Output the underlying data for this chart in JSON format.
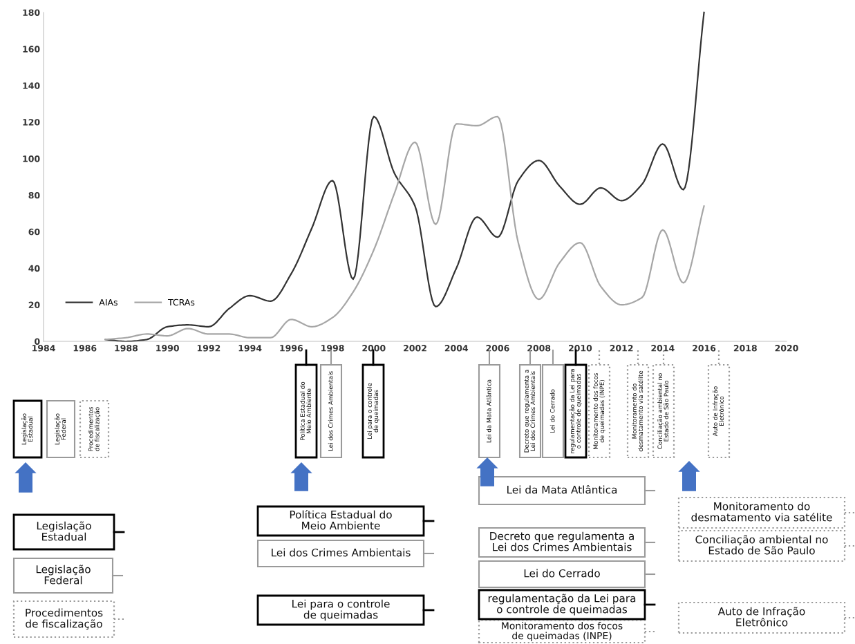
{
  "chart_data": {
    "type": "line",
    "x": [
      1987,
      1988,
      1989,
      1990,
      1991,
      1992,
      1993,
      1994,
      1995,
      1996,
      1997,
      1998,
      1999,
      2000,
      2001,
      2002,
      2003,
      2004,
      2005,
      2006,
      2007,
      2008,
      2009,
      2010,
      2011,
      2012,
      2013,
      2014,
      2015,
      2016
    ],
    "series": [
      {
        "name": "AIAs",
        "color": "#333333",
        "values": [
          1,
          0,
          1,
          8,
          9,
          8,
          18,
          25,
          22,
          37,
          62,
          88,
          34,
          123,
          92,
          74,
          19,
          40,
          68,
          57,
          88,
          99,
          85,
          75,
          84,
          77,
          86,
          108,
          83,
          180
        ]
      },
      {
        "name": "TCRAs",
        "color": "#a6a6a6",
        "values": [
          1,
          2,
          4,
          3,
          7,
          4,
          4,
          2,
          2,
          12,
          8,
          13,
          27,
          50,
          81,
          109,
          64,
          119,
          118,
          123,
          54,
          23,
          43,
          54,
          30,
          20,
          24,
          61,
          32,
          74
        ]
      }
    ],
    "xlim": [
      1984,
      2020
    ],
    "xticks": [
      1984,
      1986,
      1988,
      1990,
      1992,
      1994,
      1996,
      1998,
      2000,
      2002,
      2004,
      2006,
      2008,
      2010,
      2012,
      2014,
      2016,
      2018,
      2020
    ],
    "ylim": [
      0,
      180
    ],
    "yticks": [
      0,
      20,
      40,
      60,
      80,
      100,
      120,
      140,
      160,
      180
    ],
    "grid": false,
    "legend": "bottom left",
    "marker": "none",
    "line_style": "solid",
    "annotations": [
      "Política Estadual do\nMeio Ambiente",
      "Lei dos Crimes Ambientais",
      "Lei para o controle\nde queimadas",
      "Lei da Mata Atlântica",
      "Decreto que regulamenta a\nLei dos Crimes Ambientais",
      "Lei do Cerrado",
      "regulamentação da Lei para\no controle de queimadas",
      "Monitoramento dos focos\nde queimadas (INPE)",
      "Monitoramento do\ndesmatamento via satélite",
      "Conciliação ambiental no\nEstado de São Paulo",
      "Auto de Infração\nEletrônico",
      "Legislação\nEstadual",
      "Legislação\nFederal",
      "Procedimentos\nde fiscalização",
      "Legislação\nEstadual",
      "Legislação\nFederal",
      "Procedimentos\nde fiscalização",
      "Política Estadual do\nMeio Ambiente",
      "Lei dos Crimes Ambientais",
      "Lei para o controle\nde queimadas",
      "Lei da Mata Atlântica",
      "Decreto que regulamenta a\nLei dos Crimes Ambientais",
      "Lei do Cerrado",
      "regulamentação da Lei para\no controle de queimadas",
      "Monitoramento dos focos\nde queimadas (INPE)",
      "Monitoramento do\ndesmatamento via satélite",
      "Conciliação ambiental no\nEstado de São Paulo",
      "Auto de Infração\nEletrônico"
    ]
  }
}
